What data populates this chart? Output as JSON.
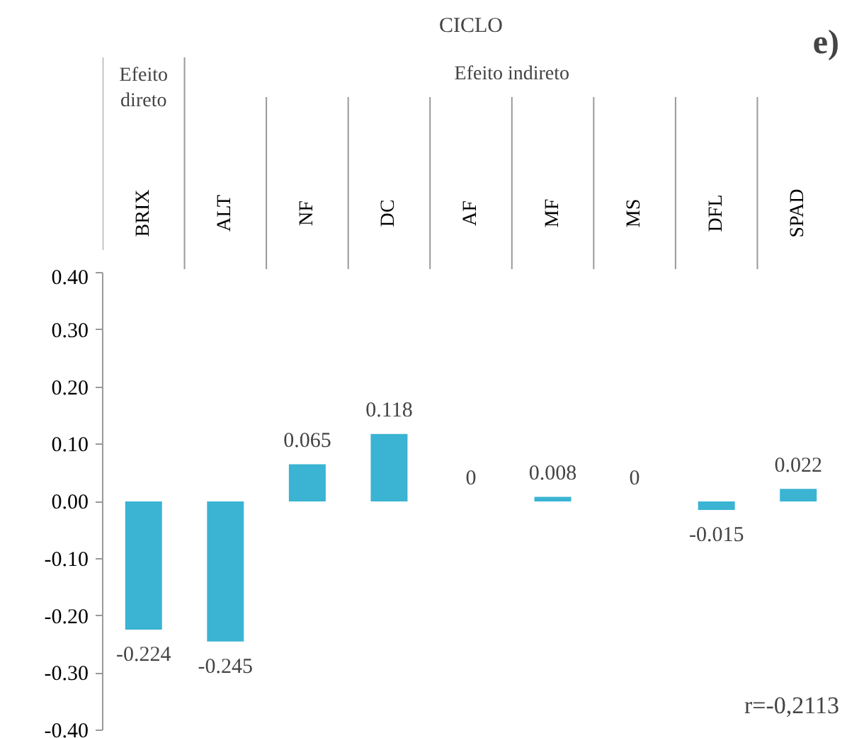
{
  "chart_data": {
    "type": "bar",
    "title": "CICLO",
    "categories": [
      "BRIX",
      "ALT",
      "NF",
      "DC",
      "AF",
      "MF",
      "MS",
      "DFL",
      "SPAD"
    ],
    "values": [
      -0.224,
      -0.245,
      0.065,
      0.118,
      0,
      0.008,
      0,
      -0.015,
      0.022
    ],
    "color": "#3ab4d2",
    "data_labels": true,
    "grid": false,
    "ylim": [
      -0.4,
      0.4
    ],
    "yticks": [
      {
        "value": -0.4,
        "label": "-0.40"
      },
      {
        "value": -0.3,
        "label": "-0.30"
      },
      {
        "value": -0.2,
        "label": "-0.20"
      },
      {
        "value": -0.1,
        "label": "-0.10"
      },
      {
        "value": 0,
        "label": "0.00"
      },
      {
        "value": 0.1,
        "label": "0.10"
      },
      {
        "value": 0.2,
        "label": "0.20"
      },
      {
        "value": 0.3,
        "label": "0.30"
      },
      {
        "value": 0.4,
        "label": "0.40"
      }
    ],
    "tick_labels": "y",
    "annotations": [
      "e)",
      "Efeito direto",
      "Efeito indireto",
      "r=-0,2113"
    ]
  }
}
